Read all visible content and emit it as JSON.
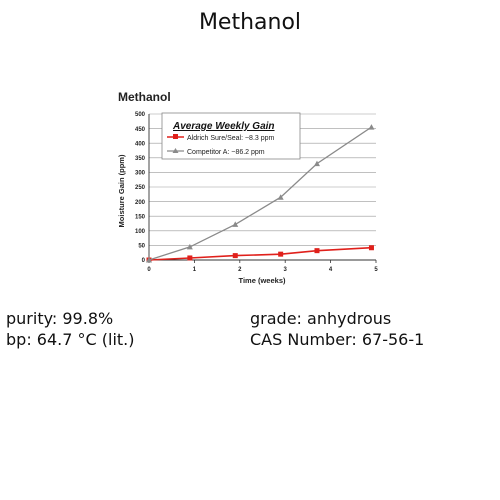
{
  "page": {
    "title": "Methanol"
  },
  "chart_data": {
    "type": "line",
    "title": "Methanol",
    "inner_title": "Average Weekly Gain",
    "xlabel": "Time (weeks)",
    "ylabel": "Moisture Gain (ppm)",
    "xlim": [
      0,
      5
    ],
    "ylim": [
      0,
      500
    ],
    "xticks": [
      "0",
      "1",
      "2",
      "3",
      "4",
      "5"
    ],
    "yticks": [
      "0",
      "50",
      "100",
      "150",
      "200",
      "250",
      "300",
      "350",
      "400",
      "450",
      "500"
    ],
    "grid": true,
    "legend_position": "top-left",
    "series": [
      {
        "name": "Aldrich Sure/Seal: ~8.3 ppm",
        "color": "#e0201b",
        "marker": "square",
        "x": [
          0,
          0.9,
          1.9,
          2.9,
          3.7,
          4.9
        ],
        "y": [
          0,
          7,
          15,
          20,
          32,
          42
        ]
      },
      {
        "name": "Competitor A: ~86.2 ppm",
        "color": "#8a8a8a",
        "marker": "triangle",
        "x": [
          0,
          0.9,
          1.9,
          2.9,
          3.7,
          4.9
        ],
        "y": [
          0,
          45,
          122,
          215,
          330,
          455
        ]
      }
    ]
  },
  "specs": {
    "purity": "purity: 99.8%",
    "bp": "bp: 64.7 °C (lit.)",
    "grade": "grade: anhydrous",
    "cas": "CAS Number: 67-56-1"
  }
}
